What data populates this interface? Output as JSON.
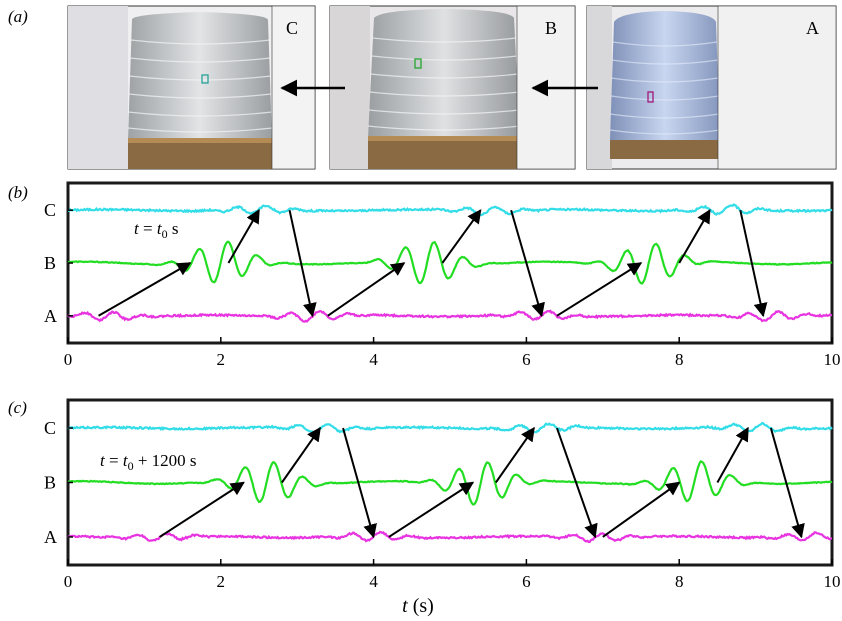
{
  "figure": {
    "panel_labels": [
      "(a)",
      "(b)",
      "(c)"
    ],
    "photos": [
      {
        "letter": "C",
        "body_color": "#c9ccce",
        "marker_color": "#1a9e93"
      },
      {
        "letter": "B",
        "body_color": "#c3c6c8",
        "marker_color": "#2fa83a"
      },
      {
        "letter": "A",
        "body_color": "#a7b9da",
        "marker_color": "#a0187a"
      }
    ],
    "xlabel_var": "t",
    "xlabel_unit": " (s)",
    "colors": {
      "C": "#33dde8",
      "B": "#22dd22",
      "A": "#e833e0"
    }
  },
  "chart_data": [
    {
      "type": "line",
      "panel": "(b)",
      "annotation": {
        "lhs": "t",
        "eq": " = ",
        "var": "t",
        "sub": "0",
        "rhs": " s"
      },
      "x_ticks": [
        0,
        2,
        4,
        6,
        8,
        10
      ],
      "xlim": [
        0,
        10
      ],
      "trace_labels": [
        "C",
        "B",
        "A"
      ],
      "grid": false,
      "series": [
        {
          "name": "C",
          "baseline": 0,
          "bursts": [
            [
              2.5,
              0.28
            ],
            [
              5.5,
              0.28
            ],
            [
              8.6,
              0.32
            ]
          ]
        },
        {
          "name": "B",
          "baseline": 0,
          "bursts": [
            [
              2.0,
              0.82
            ],
            [
              4.7,
              0.85
            ],
            [
              7.6,
              0.8
            ]
          ]
        },
        {
          "name": "A",
          "baseline": 0,
          "bursts": [
            [
              0.5,
              0.3
            ],
            [
              3.2,
              0.35
            ],
            [
              6.2,
              0.3
            ],
            [
              9.2,
              0.32
            ]
          ]
        }
      ]
    },
    {
      "type": "line",
      "panel": "(c)",
      "annotation": {
        "lhs": "t",
        "eq": " = ",
        "var": "t",
        "sub": "0",
        "rhs": " + 1200 s"
      },
      "x_ticks": [
        0,
        2,
        4,
        6,
        8,
        10
      ],
      "xlim": [
        0,
        10
      ],
      "trace_labels": [
        "C",
        "B",
        "A"
      ],
      "grid": false,
      "series": [
        {
          "name": "C",
          "baseline": 0,
          "bursts": [
            [
              3.3,
              0.3
            ],
            [
              6.2,
              0.28
            ],
            [
              9.0,
              0.3
            ]
          ]
        },
        {
          "name": "B",
          "baseline": 0,
          "bursts": [
            [
              2.6,
              0.82
            ],
            [
              5.4,
              0.85
            ],
            [
              8.2,
              0.8
            ]
          ]
        },
        {
          "name": "A",
          "baseline": 0,
          "bursts": [
            [
              1.2,
              0.25
            ],
            [
              4.0,
              0.3
            ],
            [
              6.9,
              0.28
            ],
            [
              9.7,
              0.25
            ]
          ]
        }
      ]
    }
  ]
}
